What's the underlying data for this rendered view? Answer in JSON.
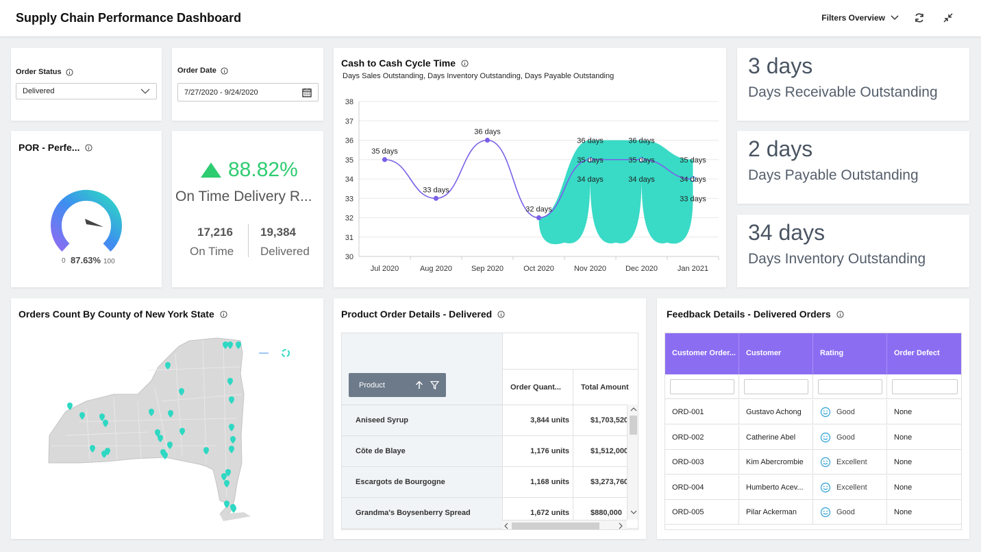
{
  "header": {
    "title": "Supply Chain Performance Dashboard",
    "filters_overview": "Filters Overview"
  },
  "filters": {
    "order_status_label": "Order Status",
    "order_status_value": "Delivered",
    "order_date_label": "Order Date",
    "order_date_value": "7/27/2020 - 9/24/2020"
  },
  "por": {
    "title": "POR - Perfe...",
    "value": "87.63%",
    "min": "0",
    "max": "100",
    "fraction": 0.8763
  },
  "otd": {
    "value": "88.82%",
    "label": "On Time Delivery R...",
    "on_time_value": "17,216",
    "on_time_label": "On Time",
    "delivered_value": "19,384",
    "delivered_label": "Delivered"
  },
  "c2c": {
    "title": "Cash to Cash Cycle Time",
    "subtitle": "Days Sales Outstanding, Days Inventory Outstanding, Days Payable Outstanding"
  },
  "chart_data": {
    "type": "line",
    "categories": [
      "Jul 2020",
      "Aug 2020",
      "Sep 2020",
      "Oct 2020",
      "Nov 2020",
      "Dec 2020",
      "Jan 2021"
    ],
    "yticks": [
      30,
      31,
      32,
      33,
      34,
      35,
      36,
      37,
      38
    ],
    "ylim": [
      30,
      38
    ],
    "series": [
      {
        "name": "",
        "values": [
          35,
          33,
          36,
          32,
          35,
          35,
          34
        ],
        "color": "#7a5fe8"
      }
    ],
    "range": {
      "high": [
        null,
        null,
        null,
        null,
        36,
        36,
        35
      ],
      "low": [
        null,
        null,
        null,
        null,
        34,
        34,
        33
      ],
      "color": "#2ed8c3"
    },
    "labels": [
      {
        "x": 0,
        "y": 35,
        "text": "35 days"
      },
      {
        "x": 1,
        "y": 33,
        "text": "33 days"
      },
      {
        "x": 2,
        "y": 36,
        "text": "36 days"
      },
      {
        "x": 3,
        "y": 32,
        "text": "32 days"
      },
      {
        "x": 4,
        "y": 36,
        "text": "36 days"
      },
      {
        "x": 4,
        "y": 35,
        "text": "35 days"
      },
      {
        "x": 4,
        "y": 34,
        "text": "34 days"
      },
      {
        "x": 5,
        "y": 36,
        "text": "36 days"
      },
      {
        "x": 5,
        "y": 35,
        "text": "35 days"
      },
      {
        "x": 5,
        "y": 34,
        "text": "34 days"
      },
      {
        "x": 6,
        "y": 35,
        "text": "35 days"
      },
      {
        "x": 6,
        "y": 34,
        "text": "34 days"
      },
      {
        "x": 6,
        "y": 33,
        "text": "33 days"
      }
    ]
  },
  "kpis": [
    {
      "value": "3 days",
      "label": "Days Receivable Outstanding"
    },
    {
      "value": "2 days",
      "label": "Days Payable Outstanding"
    },
    {
      "value": "34 days",
      "label": "Days Inventory Outstanding"
    }
  ],
  "map": {
    "title": "Orders Count By County of New York State"
  },
  "products": {
    "title": "Product Order Details - Delivered",
    "col_product": "Product",
    "col_qty": "Order Quant...",
    "col_amount": "Total Amount",
    "rows": [
      {
        "product": "Aniseed Syrup",
        "qty": "3,844 units",
        "amount": "$1,703,520"
      },
      {
        "product": "Côte de Blaye",
        "qty": "1,176 units",
        "amount": "$1,512,000"
      },
      {
        "product": "Escargots de Bourgogne",
        "qty": "1,168 units",
        "amount": "$3,273,760"
      },
      {
        "product": "Grandma's Boysenberry Spread",
        "qty": "1,672 units",
        "amount": "$880,000"
      }
    ]
  },
  "feedback": {
    "title": "Feedback Details - Delivered Orders",
    "columns": [
      "Customer Order...",
      "Customer",
      "Rating",
      "Order Defect"
    ],
    "rows": [
      {
        "order": "ORD-001",
        "customer": "Gustavo Achong",
        "rating": "Good",
        "defect": "None"
      },
      {
        "order": "ORD-002",
        "customer": "Catherine Abel",
        "rating": "Good",
        "defect": "None"
      },
      {
        "order": "ORD-003",
        "customer": "Kim Abercrombie",
        "rating": "Excellent",
        "defect": "None"
      },
      {
        "order": "ORD-004",
        "customer": "Humberto Acev...",
        "rating": "Excellent",
        "defect": "None"
      },
      {
        "order": "ORD-005",
        "customer": "Pilar Ackerman",
        "rating": "Good",
        "defect": "None"
      }
    ]
  },
  "colors": {
    "accent_purple": "#8b6df2",
    "teal": "#2ed8c3",
    "green": "#2ecc71",
    "gauge_blue": "#3d8ef0"
  }
}
